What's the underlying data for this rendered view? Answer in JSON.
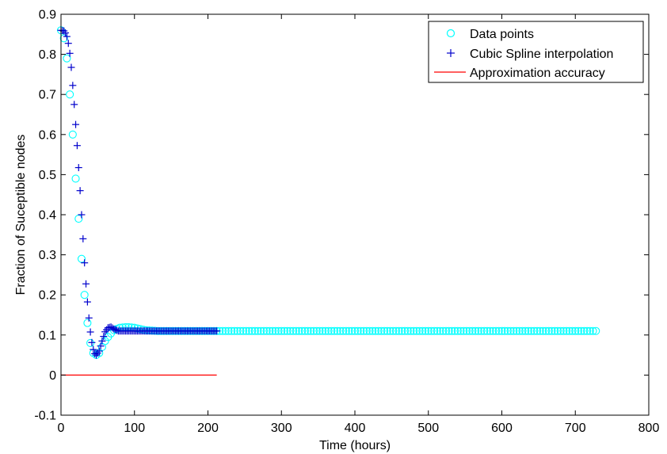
{
  "chart_data": {
    "type": "line",
    "title": "",
    "xlabel": "Time (hours)",
    "ylabel": "Fraction of Suceptible nodes",
    "xlim": [
      0,
      800
    ],
    "ylim": [
      -0.1,
      0.9
    ],
    "xticks": [
      0,
      100,
      200,
      300,
      400,
      500,
      600,
      700,
      800
    ],
    "yticks": [
      -0.1,
      0,
      0.1,
      0.2,
      0.3,
      0.4,
      0.5,
      0.6,
      0.7,
      0.8,
      0.9
    ],
    "xtick_labels": [
      "0",
      "100",
      "200",
      "300",
      "400",
      "500",
      "600",
      "700",
      "800"
    ],
    "ytick_labels": [
      "-0.1",
      "0",
      "0.1",
      "0.2",
      "0.3",
      "0.4",
      "0.5",
      "0.6",
      "0.7",
      "0.8",
      "0.9"
    ],
    "grid": false,
    "legend_position": "top-right",
    "series": [
      {
        "name": "Data points",
        "marker": "circle",
        "color": "#00ffff",
        "x_range": [
          0,
          730
        ],
        "x_step": 4,
        "curve": [
          [
            0,
            0.86
          ],
          [
            4,
            0.84
          ],
          [
            8,
            0.79
          ],
          [
            12,
            0.7
          ],
          [
            16,
            0.6
          ],
          [
            20,
            0.49
          ],
          [
            24,
            0.39
          ],
          [
            28,
            0.29
          ],
          [
            32,
            0.2
          ],
          [
            36,
            0.13
          ],
          [
            40,
            0.08
          ],
          [
            44,
            0.055
          ],
          [
            48,
            0.05
          ],
          [
            52,
            0.055
          ],
          [
            56,
            0.07
          ],
          [
            60,
            0.085
          ],
          [
            66,
            0.1
          ],
          [
            72,
            0.112
          ],
          [
            80,
            0.118
          ],
          [
            90,
            0.12
          ],
          [
            100,
            0.118
          ],
          [
            115,
            0.112
          ],
          [
            130,
            0.11
          ],
          [
            730,
            0.11
          ]
        ]
      },
      {
        "name": "Cubic Spline interpolation",
        "marker": "plus",
        "color": "#0000cc",
        "x_range": [
          0,
          212
        ],
        "x_step": 2,
        "curve": [
          [
            0,
            0.86
          ],
          [
            5,
            0.858
          ],
          [
            9,
            0.84
          ],
          [
            13,
            0.79
          ],
          [
            17,
            0.7
          ],
          [
            21,
            0.6
          ],
          [
            25,
            0.49
          ],
          [
            29,
            0.37
          ],
          [
            33,
            0.25
          ],
          [
            37,
            0.16
          ],
          [
            41,
            0.09
          ],
          [
            45,
            0.055
          ],
          [
            48,
            0.05
          ],
          [
            52,
            0.06
          ],
          [
            56,
            0.085
          ],
          [
            60,
            0.108
          ],
          [
            64,
            0.118
          ],
          [
            68,
            0.12
          ],
          [
            72,
            0.115
          ],
          [
            78,
            0.11
          ],
          [
            212,
            0.11
          ]
        ]
      },
      {
        "name": "Approximation accuracy",
        "marker": "line",
        "color": "#ff0000",
        "x": [
          0,
          212
        ],
        "y": [
          0,
          0
        ]
      }
    ]
  }
}
